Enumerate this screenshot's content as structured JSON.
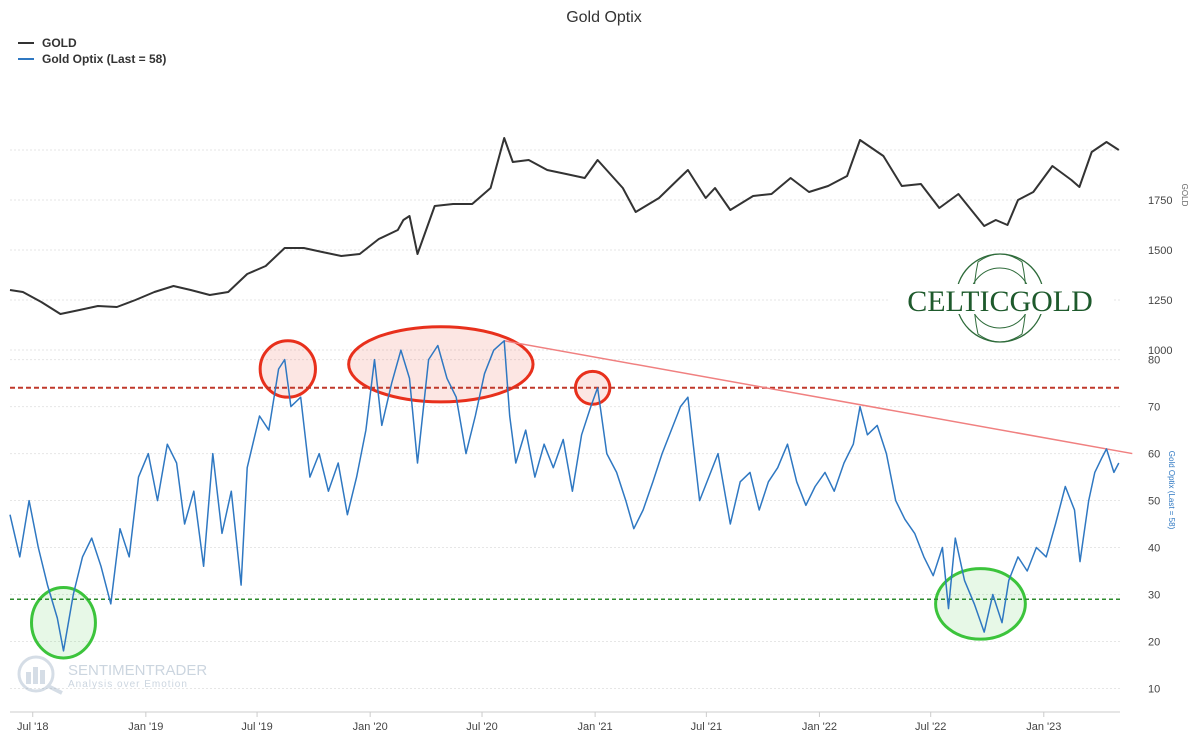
{
  "chart_data": {
    "type": "line",
    "title": "Gold Optix",
    "legend_position": "top-left",
    "grid": true,
    "x_range": [
      "2018-05-25",
      "2023-05-05"
    ],
    "x_tick_labels": [
      {
        "label": "Jul '18",
        "date": "2018-07-01"
      },
      {
        "label": "Jan '19",
        "date": "2019-01-01"
      },
      {
        "label": "Jul '19",
        "date": "2019-07-01"
      },
      {
        "label": "Jan '20",
        "date": "2020-01-01"
      },
      {
        "label": "Jul '20",
        "date": "2020-07-01"
      },
      {
        "label": "Jan '21",
        "date": "2021-01-01"
      },
      {
        "label": "Jul '21",
        "date": "2021-07-01"
      },
      {
        "label": "Jan '22",
        "date": "2022-01-01"
      },
      {
        "label": "Jul '22",
        "date": "2022-07-01"
      },
      {
        "label": "Jan '23",
        "date": "2023-01-01"
      }
    ],
    "gold_panel": {
      "axis_label": "GOLD",
      "ylim": [
        1000,
        2250
      ],
      "ticks": [
        "1000",
        "1250",
        "1500",
        "1750"
      ],
      "series": {
        "name": "GOLD",
        "color": "#333333",
        "points": [
          [
            "2018-05-25",
            1300
          ],
          [
            "2018-06-15",
            1290
          ],
          [
            "2018-07-15",
            1240
          ],
          [
            "2018-08-15",
            1180
          ],
          [
            "2018-09-15",
            1200
          ],
          [
            "2018-10-15",
            1220
          ],
          [
            "2018-11-15",
            1215
          ],
          [
            "2018-12-15",
            1250
          ],
          [
            "2019-01-15",
            1290
          ],
          [
            "2019-02-15",
            1320
          ],
          [
            "2019-03-15",
            1300
          ],
          [
            "2019-04-15",
            1275
          ],
          [
            "2019-05-15",
            1290
          ],
          [
            "2019-06-15",
            1380
          ],
          [
            "2019-07-15",
            1420
          ],
          [
            "2019-08-15",
            1510
          ],
          [
            "2019-09-15",
            1510
          ],
          [
            "2019-10-15",
            1490
          ],
          [
            "2019-11-15",
            1470
          ],
          [
            "2019-12-15",
            1480
          ],
          [
            "2020-01-15",
            1555
          ],
          [
            "2020-02-15",
            1600
          ],
          [
            "2020-02-24",
            1650
          ],
          [
            "2020-03-05",
            1670
          ],
          [
            "2020-03-18",
            1480
          ],
          [
            "2020-04-15",
            1720
          ],
          [
            "2020-05-15",
            1730
          ],
          [
            "2020-06-15",
            1730
          ],
          [
            "2020-07-15",
            1810
          ],
          [
            "2020-08-06",
            2060
          ],
          [
            "2020-08-20",
            1940
          ],
          [
            "2020-09-15",
            1950
          ],
          [
            "2020-10-15",
            1900
          ],
          [
            "2020-11-15",
            1880
          ],
          [
            "2020-12-15",
            1860
          ],
          [
            "2021-01-05",
            1950
          ],
          [
            "2021-02-15",
            1810
          ],
          [
            "2021-03-08",
            1690
          ],
          [
            "2021-04-15",
            1760
          ],
          [
            "2021-05-15",
            1850
          ],
          [
            "2021-06-01",
            1900
          ],
          [
            "2021-06-30",
            1760
          ],
          [
            "2021-07-15",
            1810
          ],
          [
            "2021-08-09",
            1700
          ],
          [
            "2021-09-15",
            1770
          ],
          [
            "2021-10-15",
            1780
          ],
          [
            "2021-11-15",
            1860
          ],
          [
            "2021-12-15",
            1790
          ],
          [
            "2022-01-15",
            1820
          ],
          [
            "2022-02-15",
            1870
          ],
          [
            "2022-03-08",
            2050
          ],
          [
            "2022-04-15",
            1970
          ],
          [
            "2022-05-15",
            1820
          ],
          [
            "2022-06-15",
            1830
          ],
          [
            "2022-07-15",
            1710
          ],
          [
            "2022-08-15",
            1780
          ],
          [
            "2022-09-26",
            1620
          ],
          [
            "2022-10-15",
            1650
          ],
          [
            "2022-11-03",
            1625
          ],
          [
            "2022-11-20",
            1750
          ],
          [
            "2022-12-15",
            1790
          ],
          [
            "2023-01-15",
            1920
          ],
          [
            "2023-02-15",
            1850
          ],
          [
            "2023-02-28",
            1815
          ],
          [
            "2023-03-20",
            1990
          ],
          [
            "2023-04-13",
            2040
          ],
          [
            "2023-05-03",
            2000
          ]
        ]
      }
    },
    "optix_panel": {
      "axis_label": "Gold Optix (Last = 58)",
      "ylim": [
        5,
        88
      ],
      "ticks": [
        "10",
        "20",
        "30",
        "40",
        "50",
        "60",
        "70",
        "80"
      ],
      "series": {
        "name": "Gold Optix (Last = 58)",
        "color": "#2f78c2",
        "points": [
          [
            "2018-05-25",
            47
          ],
          [
            "2018-06-10",
            38
          ],
          [
            "2018-06-25",
            50
          ],
          [
            "2018-07-10",
            40
          ],
          [
            "2018-07-25",
            32
          ],
          [
            "2018-08-10",
            25
          ],
          [
            "2018-08-20",
            18
          ],
          [
            "2018-09-05",
            30
          ],
          [
            "2018-09-20",
            38
          ],
          [
            "2018-10-05",
            42
          ],
          [
            "2018-10-20",
            36
          ],
          [
            "2018-11-05",
            28
          ],
          [
            "2018-11-20",
            44
          ],
          [
            "2018-12-05",
            38
          ],
          [
            "2018-12-20",
            55
          ],
          [
            "2019-01-05",
            60
          ],
          [
            "2019-01-20",
            50
          ],
          [
            "2019-02-05",
            62
          ],
          [
            "2019-02-20",
            58
          ],
          [
            "2019-03-05",
            45
          ],
          [
            "2019-03-20",
            52
          ],
          [
            "2019-04-05",
            36
          ],
          [
            "2019-04-20",
            60
          ],
          [
            "2019-05-05",
            43
          ],
          [
            "2019-05-20",
            52
          ],
          [
            "2019-06-05",
            32
          ],
          [
            "2019-06-15",
            57
          ],
          [
            "2019-07-05",
            68
          ],
          [
            "2019-07-20",
            65
          ],
          [
            "2019-08-05",
            78
          ],
          [
            "2019-08-15",
            80
          ],
          [
            "2019-08-25",
            70
          ],
          [
            "2019-09-10",
            72
          ],
          [
            "2019-09-25",
            55
          ],
          [
            "2019-10-10",
            60
          ],
          [
            "2019-10-25",
            52
          ],
          [
            "2019-11-10",
            58
          ],
          [
            "2019-11-25",
            47
          ],
          [
            "2019-12-10",
            55
          ],
          [
            "2019-12-25",
            65
          ],
          [
            "2020-01-08",
            80
          ],
          [
            "2020-01-20",
            66
          ],
          [
            "2020-02-05",
            75
          ],
          [
            "2020-02-20",
            82
          ],
          [
            "2020-03-05",
            76
          ],
          [
            "2020-03-18",
            58
          ],
          [
            "2020-04-05",
            80
          ],
          [
            "2020-04-20",
            83
          ],
          [
            "2020-05-05",
            76
          ],
          [
            "2020-05-20",
            72
          ],
          [
            "2020-06-05",
            60
          ],
          [
            "2020-06-20",
            68
          ],
          [
            "2020-07-05",
            77
          ],
          [
            "2020-07-20",
            82
          ],
          [
            "2020-08-06",
            84
          ],
          [
            "2020-08-15",
            68
          ],
          [
            "2020-08-25",
            58
          ],
          [
            "2020-09-10",
            65
          ],
          [
            "2020-09-25",
            55
          ],
          [
            "2020-10-10",
            62
          ],
          [
            "2020-10-25",
            57
          ],
          [
            "2020-11-10",
            63
          ],
          [
            "2020-11-25",
            52
          ],
          [
            "2020-12-10",
            64
          ],
          [
            "2020-12-25",
            70
          ],
          [
            "2021-01-05",
            74
          ],
          [
            "2021-01-20",
            60
          ],
          [
            "2021-02-05",
            56
          ],
          [
            "2021-02-20",
            50
          ],
          [
            "2021-03-05",
            44
          ],
          [
            "2021-03-20",
            48
          ],
          [
            "2021-04-05",
            54
          ],
          [
            "2021-04-20",
            60
          ],
          [
            "2021-05-05",
            65
          ],
          [
            "2021-05-20",
            70
          ],
          [
            "2021-06-01",
            72
          ],
          [
            "2021-06-20",
            50
          ],
          [
            "2021-07-05",
            55
          ],
          [
            "2021-07-20",
            60
          ],
          [
            "2021-08-09",
            45
          ],
          [
            "2021-08-25",
            54
          ],
          [
            "2021-09-10",
            56
          ],
          [
            "2021-09-25",
            48
          ],
          [
            "2021-10-10",
            54
          ],
          [
            "2021-10-25",
            57
          ],
          [
            "2021-11-10",
            62
          ],
          [
            "2021-11-25",
            54
          ],
          [
            "2021-12-10",
            49
          ],
          [
            "2021-12-25",
            53
          ],
          [
            "2022-01-10",
            56
          ],
          [
            "2022-01-25",
            52
          ],
          [
            "2022-02-10",
            58
          ],
          [
            "2022-02-25",
            62
          ],
          [
            "2022-03-08",
            70
          ],
          [
            "2022-03-20",
            64
          ],
          [
            "2022-04-05",
            66
          ],
          [
            "2022-04-20",
            60
          ],
          [
            "2022-05-05",
            50
          ],
          [
            "2022-05-20",
            46
          ],
          [
            "2022-06-05",
            43
          ],
          [
            "2022-06-20",
            38
          ],
          [
            "2022-07-05",
            34
          ],
          [
            "2022-07-20",
            40
          ],
          [
            "2022-07-30",
            27
          ],
          [
            "2022-08-10",
            42
          ],
          [
            "2022-08-25",
            33
          ],
          [
            "2022-09-10",
            28
          ],
          [
            "2022-09-26",
            22
          ],
          [
            "2022-10-10",
            30
          ],
          [
            "2022-10-25",
            24
          ],
          [
            "2022-11-05",
            33
          ],
          [
            "2022-11-20",
            38
          ],
          [
            "2022-12-05",
            35
          ],
          [
            "2022-12-20",
            40
          ],
          [
            "2023-01-05",
            38
          ],
          [
            "2023-01-20",
            45
          ],
          [
            "2023-02-05",
            53
          ],
          [
            "2023-02-20",
            48
          ],
          [
            "2023-03-01",
            37
          ],
          [
            "2023-03-15",
            50
          ],
          [
            "2023-03-25",
            56
          ],
          [
            "2023-04-05",
            59
          ],
          [
            "2023-04-13",
            61
          ],
          [
            "2023-04-25",
            56
          ],
          [
            "2023-05-03",
            58
          ]
        ]
      },
      "upper_threshold": {
        "value": 74,
        "color": "#c0392b"
      },
      "lower_threshold": {
        "value": 29,
        "color": "#2e8b2e"
      },
      "trendline": {
        "start": [
          "2020-08-06",
          84
        ],
        "end": [
          "2023-05-25",
          60
        ],
        "color": "#f08080"
      },
      "highlights": [
        {
          "type": "overbought",
          "center": [
            "2019-08-20",
            78
          ],
          "rx_days": 45,
          "ry_value": 6,
          "color": "#e8301c"
        },
        {
          "type": "overbought",
          "center": [
            "2020-04-25",
            79
          ],
          "rx_days": 150,
          "ry_value": 8,
          "color": "#e8301c"
        },
        {
          "type": "overbought",
          "center": [
            "2020-12-28",
            74
          ],
          "rx_days": 28,
          "ry_value": 3.5,
          "color": "#e8301c"
        },
        {
          "type": "oversold",
          "center": [
            "2018-08-20",
            24
          ],
          "rx_days": 52,
          "ry_value": 7.5,
          "color": "#3cc43c"
        },
        {
          "type": "oversold",
          "center": [
            "2022-09-20",
            28
          ],
          "rx_days": 73,
          "ry_value": 7.5,
          "color": "#3cc43c"
        }
      ]
    }
  },
  "logos": {
    "celticgold": "CELTICGOLD",
    "sentimentrader_name": "SENTIMENTRADER",
    "sentimentrader_tagline": "Analysis over Emotion"
  }
}
